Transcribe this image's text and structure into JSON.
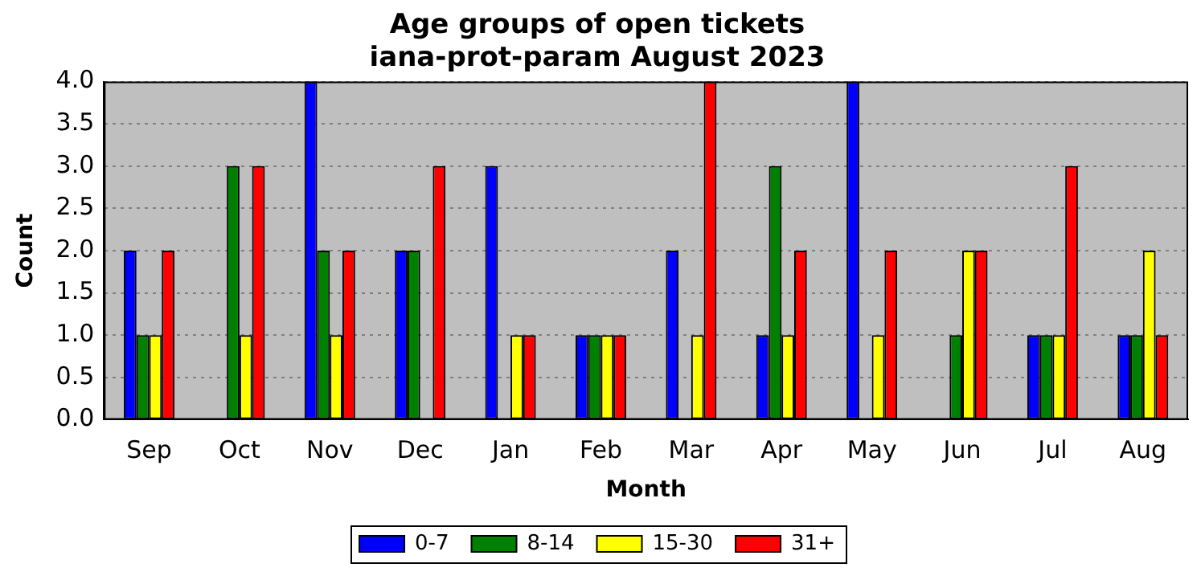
{
  "chart_data": {
    "type": "bar",
    "title": "Age groups of open tickets\niana-prot-param August 2023",
    "xlabel": "Month",
    "ylabel": "Count",
    "categories": [
      "Sep",
      "Oct",
      "Nov",
      "Dec",
      "Jan",
      "Feb",
      "Mar",
      "Apr",
      "May",
      "Jun",
      "Jul",
      "Aug"
    ],
    "series": [
      {
        "name": "0-7",
        "color": "#0000ff",
        "values": [
          2,
          0,
          4,
          2,
          3,
          1,
          2,
          1,
          4,
          0,
          1,
          1
        ]
      },
      {
        "name": "8-14",
        "color": "#008000",
        "values": [
          1,
          3,
          2,
          2,
          0,
          1,
          0,
          3,
          0,
          1,
          1,
          1
        ]
      },
      {
        "name": "15-30",
        "color": "#ffff00",
        "values": [
          1,
          1,
          1,
          0,
          1,
          1,
          1,
          1,
          1,
          2,
          1,
          2
        ]
      },
      {
        "name": "31+",
        "color": "#ff0000",
        "values": [
          2,
          3,
          2,
          3,
          1,
          1,
          4,
          2,
          2,
          2,
          3,
          1
        ]
      }
    ],
    "ylim": [
      0,
      4
    ],
    "yticks": [
      {
        "value": 0,
        "label": "0.0"
      },
      {
        "value": 0.5,
        "label": "0.5"
      },
      {
        "value": 1,
        "label": "1.0"
      },
      {
        "value": 1.5,
        "label": "1.5"
      },
      {
        "value": 2,
        "label": "2.0"
      },
      {
        "value": 2.5,
        "label": "2.5"
      },
      {
        "value": 3,
        "label": "3.0"
      },
      {
        "value": 3.5,
        "label": "3.5"
      },
      {
        "value": 4,
        "label": "4.0"
      }
    ],
    "grid": "y",
    "legend": "bottom"
  }
}
